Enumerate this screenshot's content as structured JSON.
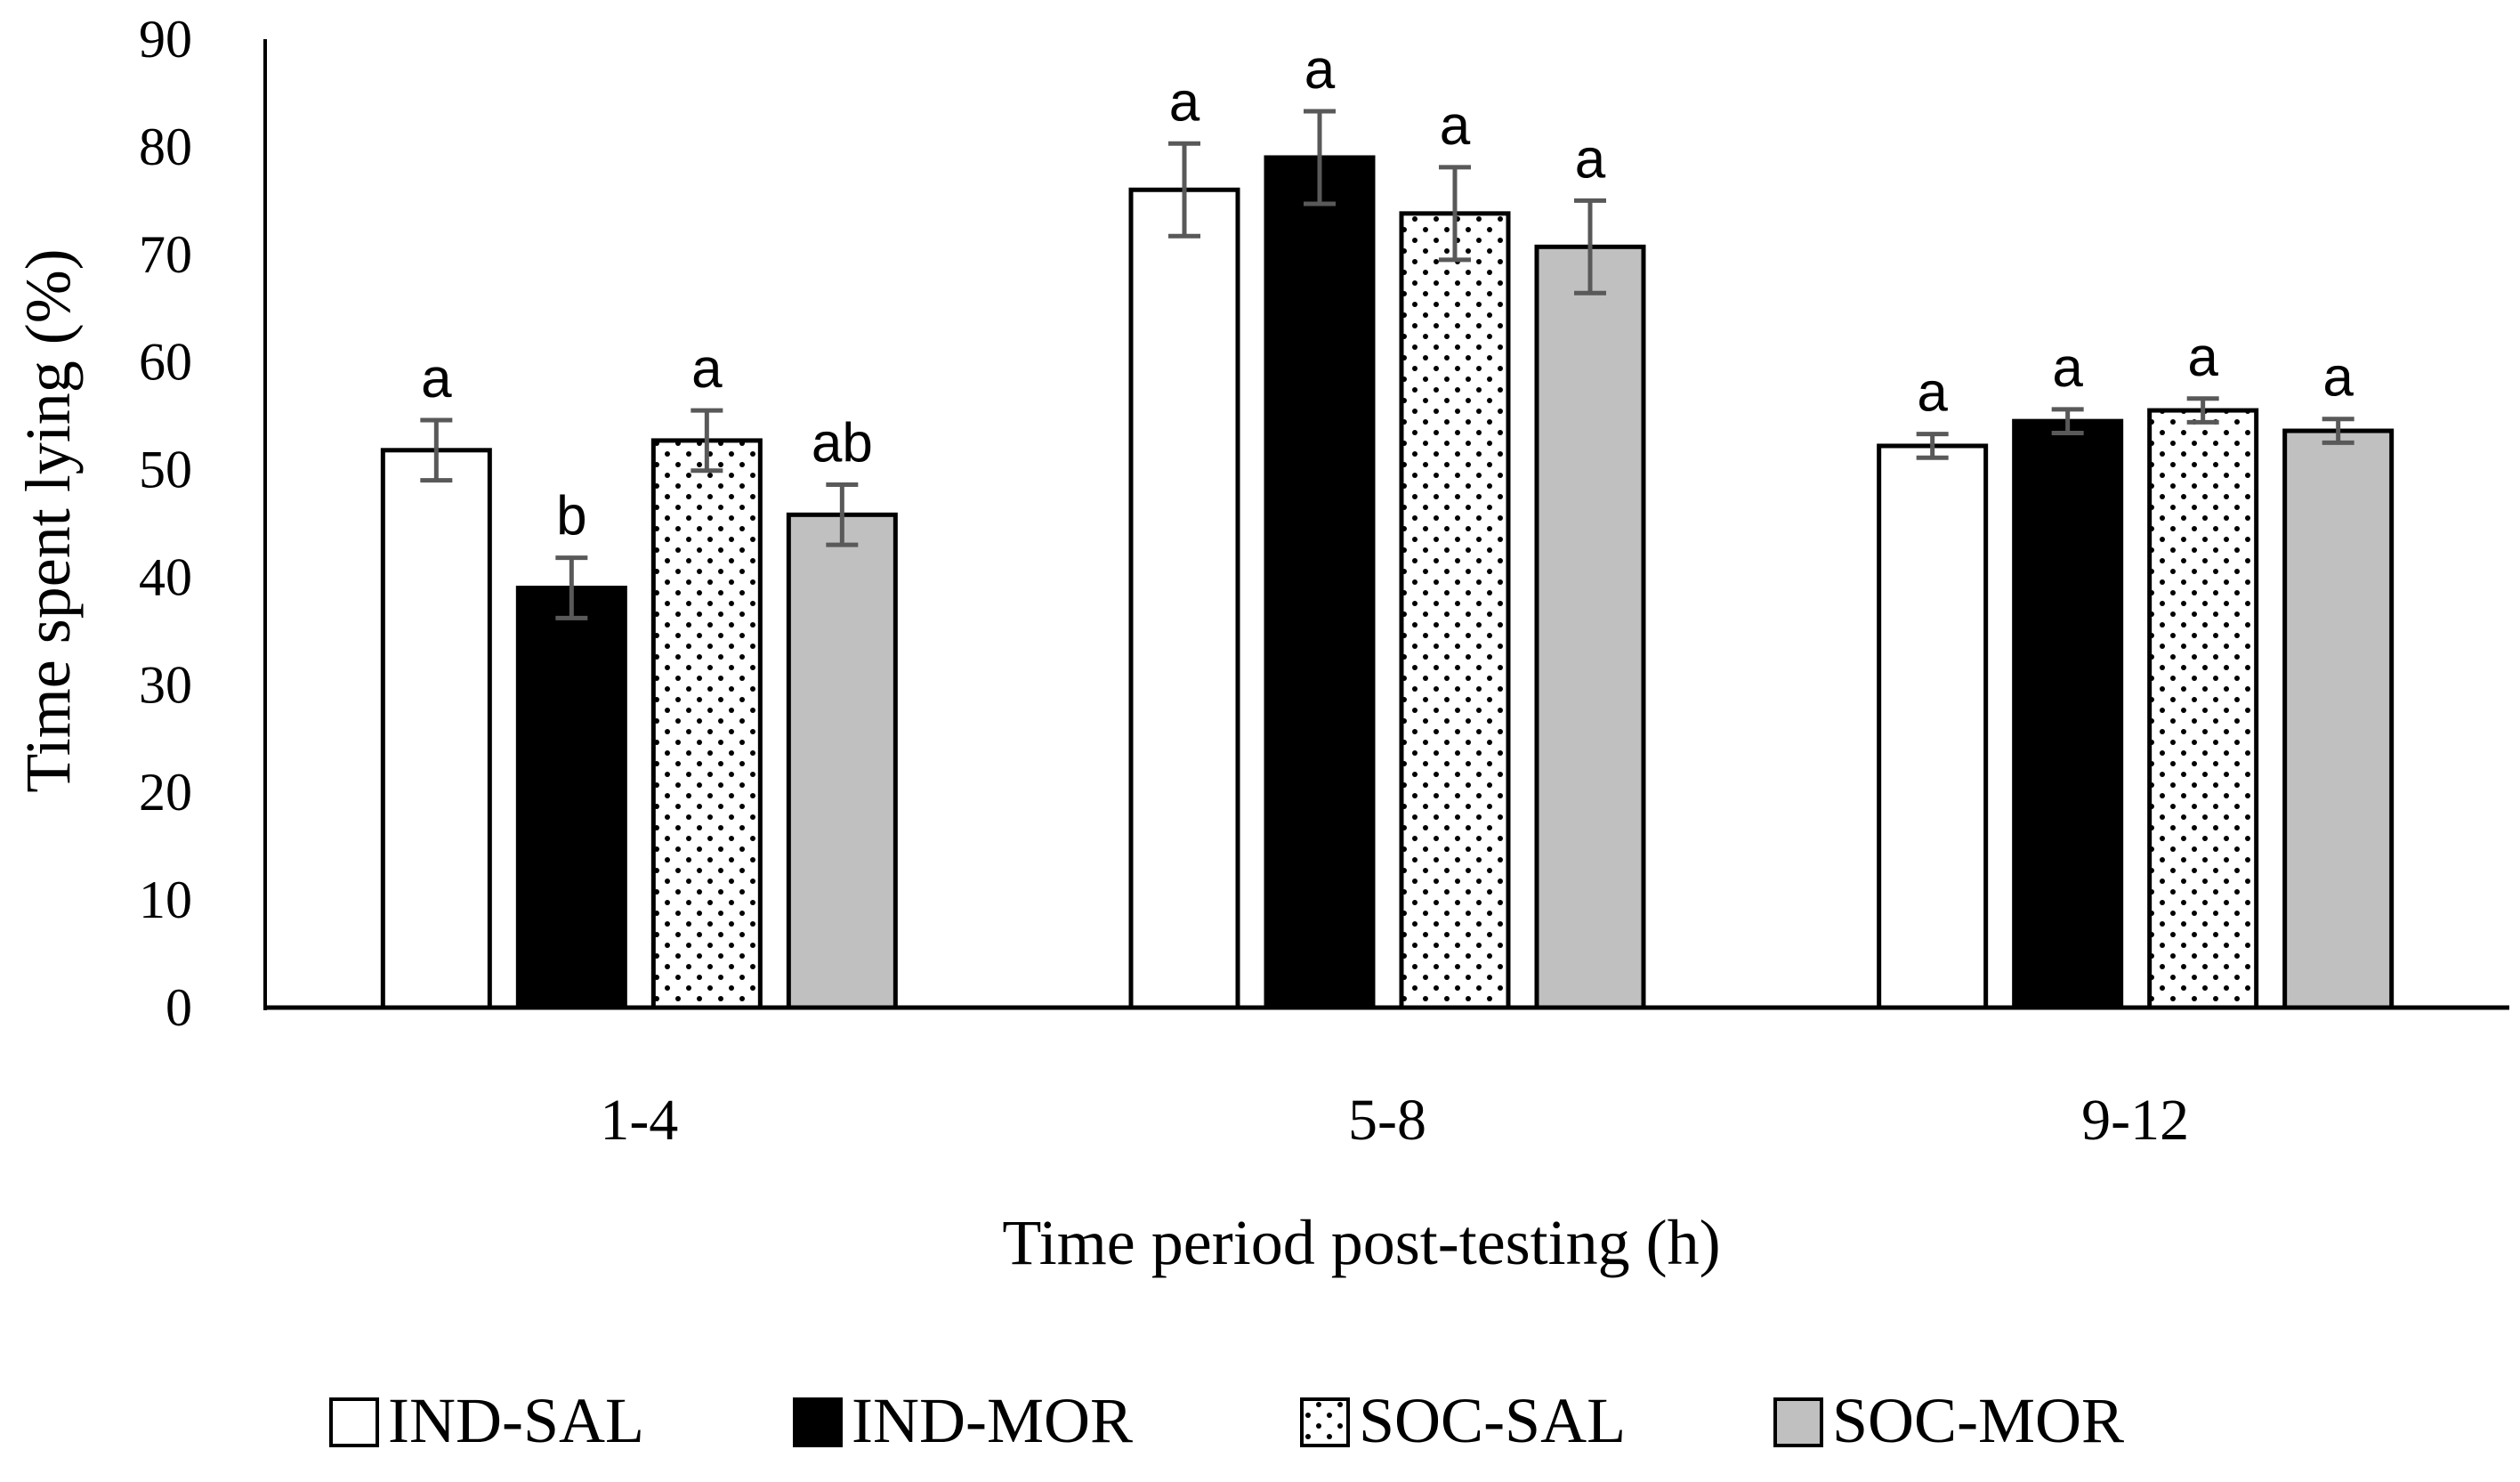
{
  "chart_data": {
    "type": "bar",
    "title": "",
    "xlabel": "Time period post-testing (h)",
    "ylabel": "Time spent lying (%)",
    "ylim": [
      0,
      90
    ],
    "yticks": [
      0,
      10,
      20,
      30,
      40,
      50,
      60,
      70,
      80,
      90
    ],
    "categories": [
      "1-4",
      "5-8",
      "9-12"
    ],
    "legend": {
      "position": "bottom"
    },
    "grid": false,
    "series": [
      {
        "name": "IND-SAL",
        "fill": "#ffffff",
        "pattern": "none",
        "values": [
          51.8,
          76.0,
          52.2
        ],
        "errors": [
          2.8,
          4.3,
          1.1
        ],
        "significance": [
          "a",
          "a",
          "a"
        ]
      },
      {
        "name": "IND-MOR",
        "fill": "#000000",
        "pattern": "none",
        "values": [
          39.0,
          79.0,
          54.5
        ],
        "errors": [
          2.8,
          4.3,
          1.1
        ],
        "significance": [
          "b",
          "a",
          "a"
        ]
      },
      {
        "name": "SOC-SAL",
        "fill": "#ffffff",
        "pattern": "dots",
        "values": [
          52.7,
          73.8,
          55.5
        ],
        "errors": [
          2.8,
          4.3,
          1.1
        ],
        "significance": [
          "a",
          "a",
          "a"
        ]
      },
      {
        "name": "SOC-MOR",
        "fill": "#c0c0c0",
        "pattern": "none",
        "values": [
          45.8,
          70.7,
          53.6
        ],
        "errors": [
          2.8,
          4.3,
          1.1
        ],
        "significance": [
          "ab",
          "a",
          "a"
        ]
      }
    ],
    "colors": {
      "outline": "#000000",
      "error_bar": "#595959",
      "grey": "#c0c0c0"
    }
  }
}
